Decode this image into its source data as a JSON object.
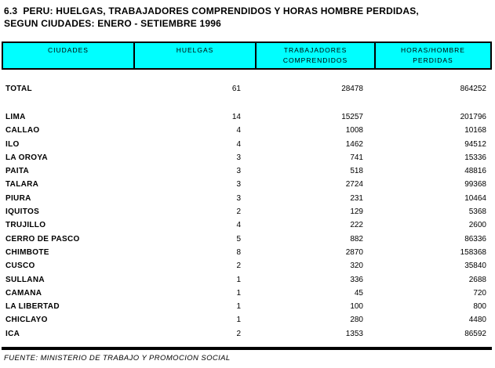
{
  "title": {
    "line1": "6.3  PERU: HUELGAS, TRABAJADORES COMPRENDIDOS Y HORAS HOMBRE PERDIDAS,",
    "line2": "SEGUN CIUDADES: ENERO - SETIEMBRE 1996"
  },
  "table": {
    "columns": [
      {
        "line1": "CIUDADES",
        "line2": ""
      },
      {
        "line1": "HUELGAS",
        "line2": ""
      },
      {
        "line1": "TRABAJADORES",
        "line2": "COMPRENDIDOS"
      },
      {
        "line1": "HORAS/HOMBRE",
        "line2": "PERDIDAS"
      }
    ],
    "total": {
      "city": "TOTAL",
      "huelgas": "61",
      "trabajadores": "28478",
      "horas": "864252"
    },
    "rows": [
      {
        "city": "LIMA",
        "huelgas": "14",
        "trabajadores": "15257",
        "horas": "201796"
      },
      {
        "city": "CALLAO",
        "huelgas": "4",
        "trabajadores": "1008",
        "horas": "10168"
      },
      {
        "city": "ILO",
        "huelgas": "4",
        "trabajadores": "1462",
        "horas": "94512"
      },
      {
        "city": "LA OROYA",
        "huelgas": "3",
        "trabajadores": "741",
        "horas": "15336"
      },
      {
        "city": "PAITA",
        "huelgas": "3",
        "trabajadores": "518",
        "horas": "48816"
      },
      {
        "city": "TALARA",
        "huelgas": "3",
        "trabajadores": "2724",
        "horas": "99368"
      },
      {
        "city": "PIURA",
        "huelgas": "3",
        "trabajadores": "231",
        "horas": "10464"
      },
      {
        "city": "IQUITOS",
        "huelgas": "2",
        "trabajadores": "129",
        "horas": "5368"
      },
      {
        "city": "TRUJILLO",
        "huelgas": "4",
        "trabajadores": "222",
        "horas": "2600"
      },
      {
        "city": "CERRO DE PASCO",
        "huelgas": "5",
        "trabajadores": "882",
        "horas": "86336"
      },
      {
        "city": "CHIMBOTE",
        "huelgas": "8",
        "trabajadores": "2870",
        "horas": "158368"
      },
      {
        "city": "CUSCO",
        "huelgas": "2",
        "trabajadores": "320",
        "horas": "35840"
      },
      {
        "city": "SULLANA",
        "huelgas": "1",
        "trabajadores": "336",
        "horas": "2688"
      },
      {
        "city": "CAMANA",
        "huelgas": "1",
        "trabajadores": "45",
        "horas": "720"
      },
      {
        "city": "LA LIBERTAD",
        "huelgas": "1",
        "trabajadores": "100",
        "horas": "800"
      },
      {
        "city": "CHICLAYO",
        "huelgas": "1",
        "trabajadores": "280",
        "horas": "4480"
      },
      {
        "city": "ICA",
        "huelgas": "2",
        "trabajadores": "1353",
        "horas": "86592"
      }
    ]
  },
  "footer": {
    "source": "FUENTE: MINISTERIO DE TRABAJO Y PROMOCION SOCIAL"
  },
  "colors": {
    "header_bg": "#00ffff",
    "border": "#000000",
    "text": "#000000",
    "page_bg": "#ffffff"
  }
}
